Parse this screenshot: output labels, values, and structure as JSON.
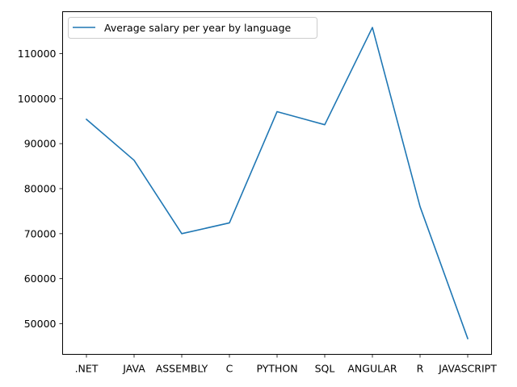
{
  "chart_data": {
    "type": "line",
    "categories": [
      ".NET",
      "JAVA",
      "ASSEMBLY",
      "C",
      "PYTHON",
      "SQL",
      "ANGULAR",
      "R",
      "JAVASCRIPT"
    ],
    "series": [
      {
        "name": "Average salary per year by language",
        "values": [
          95400,
          86300,
          70000,
          72400,
          97100,
          94200,
          115800,
          76000,
          46700
        ],
        "color": "#1f77b4"
      }
    ],
    "xlabel": "",
    "ylabel": "",
    "ylim": [
      43200,
      119300
    ],
    "yticks": [
      50000,
      60000,
      70000,
      80000,
      90000,
      100000,
      110000
    ],
    "grid": false,
    "legend_position": "top-left"
  }
}
